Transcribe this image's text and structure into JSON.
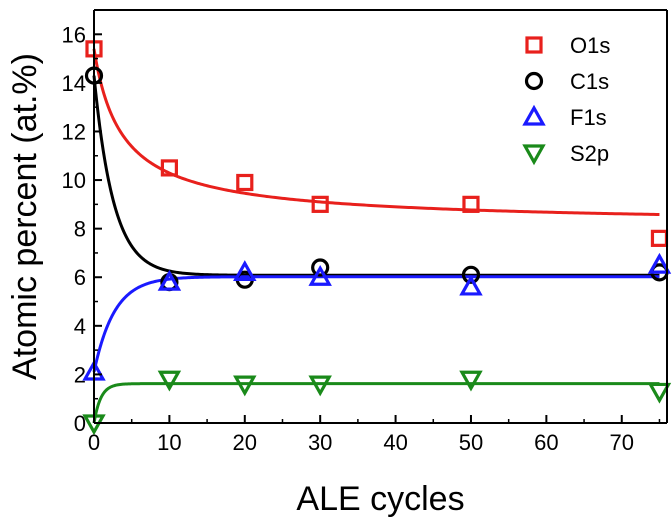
{
  "chart_data": {
    "type": "scatter",
    "title": "",
    "xlabel": "ALE cycles",
    "ylabel": "Atomic percent (at.%)",
    "xlim": [
      0,
      76
    ],
    "ylim": [
      0,
      17
    ],
    "xticks": [
      0,
      10,
      20,
      30,
      40,
      50,
      60,
      70
    ],
    "yticks": [
      0,
      2,
      4,
      6,
      8,
      10,
      12,
      14,
      16
    ],
    "grid": false,
    "legend_position": "top-right",
    "series": [
      {
        "name": "O1s",
        "color": "#e8201c",
        "marker": "square",
        "x": [
          0,
          10,
          20,
          30,
          50,
          75
        ],
        "y": [
          15.4,
          10.5,
          9.9,
          9.0,
          9.0,
          7.6
        ],
        "fit": "power-decay"
      },
      {
        "name": "C1s",
        "color": "#000000",
        "marker": "circle",
        "x": [
          0,
          10,
          20,
          30,
          50,
          75
        ],
        "y": [
          14.3,
          5.8,
          5.9,
          6.4,
          6.1,
          6.2
        ],
        "fit": "exp-decay"
      },
      {
        "name": "F1s",
        "color": "#1a1aff",
        "marker": "triangle-up",
        "x": [
          0,
          10,
          20,
          30,
          50,
          75
        ],
        "y": [
          2.1,
          5.8,
          6.2,
          6.0,
          5.6,
          6.5
        ],
        "fit": "exp-rise"
      },
      {
        "name": "S2p",
        "color": "#1a8a1a",
        "marker": "triangle-down",
        "x": [
          0,
          10,
          20,
          30,
          50,
          75
        ],
        "y": [
          0.0,
          1.8,
          1.6,
          1.6,
          1.8,
          1.3
        ],
        "fit": "exp-rise"
      }
    ]
  }
}
